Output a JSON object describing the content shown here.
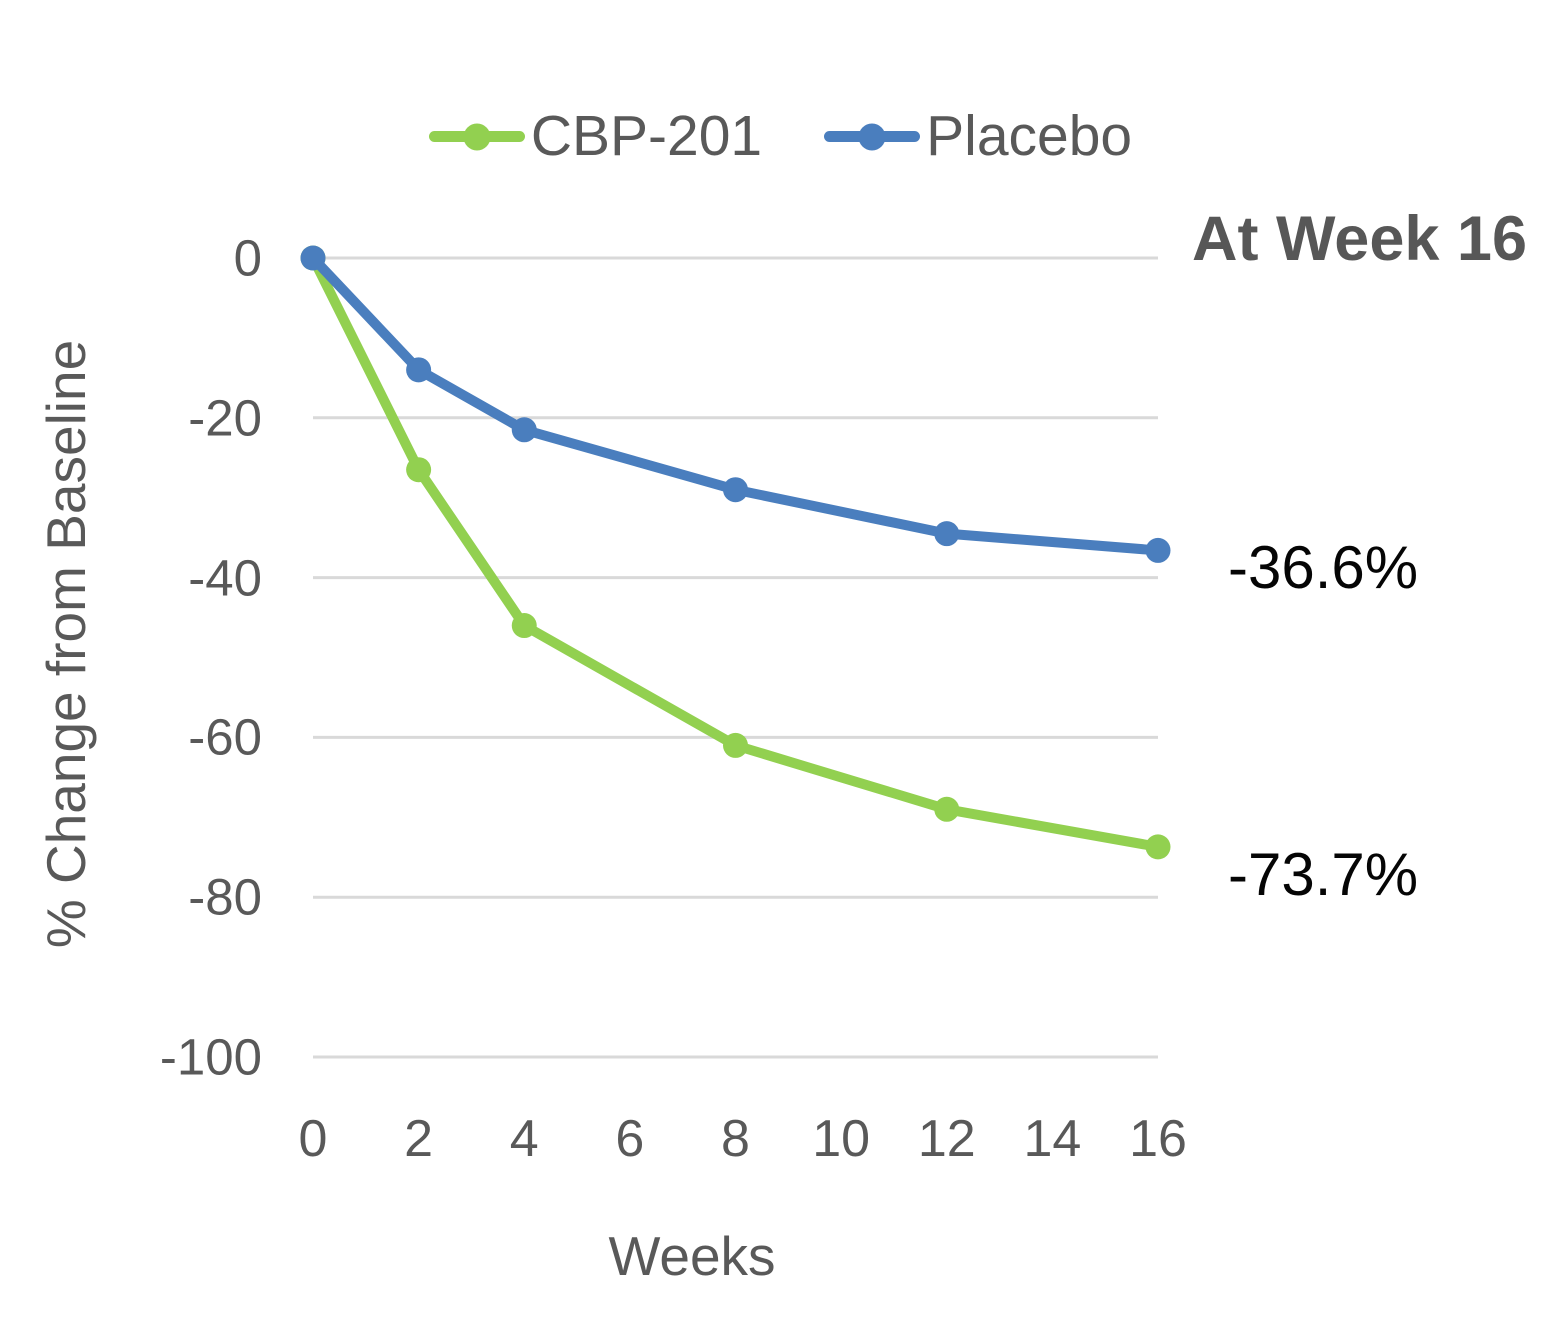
{
  "chart_data": {
    "type": "line",
    "x": [
      0,
      2,
      4,
      8,
      12,
      16
    ],
    "series": [
      {
        "name": "CBP-201",
        "color": "#92D050",
        "values": [
          0,
          -26.5,
          -46,
          -61,
          -69,
          -73.7
        ]
      },
      {
        "name": "Placebo",
        "color": "#4A7EBE",
        "values": [
          0,
          -14,
          -21.5,
          -29,
          -34.5,
          -36.6
        ]
      }
    ],
    "xlabel": "Weeks",
    "ylabel": "% Change from Baseline",
    "xticks": [
      0,
      2,
      4,
      6,
      8,
      10,
      12,
      14,
      16
    ],
    "yticks": [
      0,
      -20,
      -40,
      -60,
      -80,
      -100
    ],
    "xlim": [
      0,
      16
    ],
    "ylim": [
      -100,
      0
    ],
    "grid": "horizontal",
    "gridline_color": "#D9D9D9",
    "axis_text_color": "#595959",
    "legend_position": "top"
  },
  "annotations": {
    "heading": "At Week 16",
    "placebo_value": "-36.6%",
    "cbp201_value": "-73.7%"
  }
}
